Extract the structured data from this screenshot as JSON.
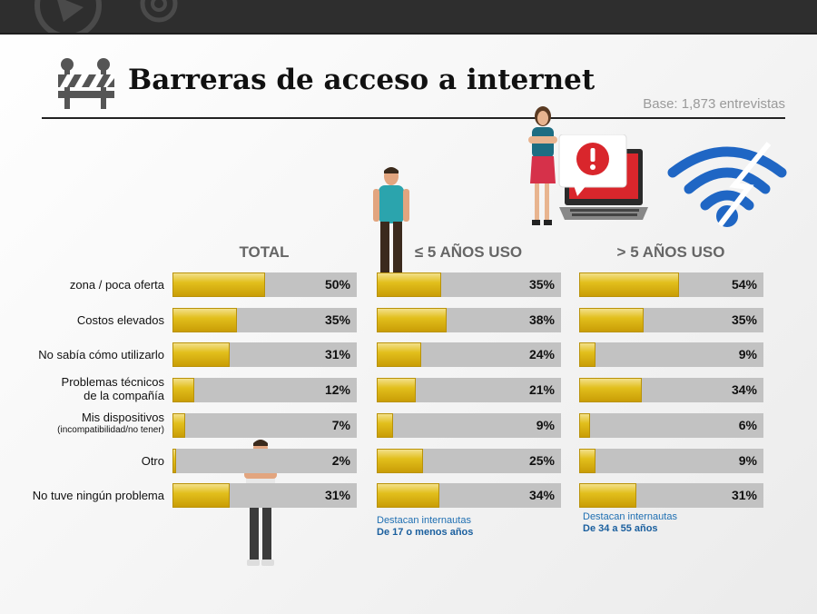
{
  "header": {
    "title": "Barreras de acceso a internet",
    "base_note": "Base: 1,873 entrevistas"
  },
  "icons": [
    "barrier-icon",
    "person-illustration",
    "laptop-alert-icon",
    "wifi-icon"
  ],
  "colors": {
    "bar_fill": "#e2bf1c",
    "bar_track": "#c2c2c2",
    "note_text": "#1f6fb2"
  },
  "chart_data": {
    "type": "bar",
    "orientation": "horizontal",
    "categories": [
      "zona / poca oferta",
      "Costos elevados",
      "No sabía cómo utilizarlo",
      "Problemas técnicos de la compañía",
      "Mis dispositivos (incompatibilidad/no tener)",
      "Otro",
      "No tuve ningún problema"
    ],
    "category_lines": [
      [
        "zona / poca oferta"
      ],
      [
        "Costos elevados"
      ],
      [
        "No sabía cómo utilizarlo"
      ],
      [
        "Problemas técnicos",
        "de la compañía"
      ],
      [
        "Mis dispositivos",
        "(incompatibilidad/no tener)"
      ],
      [
        "Otro"
      ],
      [
        "No tuve ningún problema"
      ]
    ],
    "series": [
      {
        "name": "TOTAL",
        "values": [
          50,
          35,
          31,
          12,
          7,
          2,
          31
        ],
        "labels": [
          "50%",
          "35%",
          "31%",
          "12%",
          "7%",
          "2%",
          "31%"
        ]
      },
      {
        "name": "≤ 5 AÑOS USO",
        "values": [
          35,
          38,
          24,
          21,
          9,
          25,
          34
        ],
        "labels": [
          "35%",
          "38%",
          "24%",
          "21%",
          "9%",
          "25%",
          "34%"
        ]
      },
      {
        "name": "> 5 AÑOS USO",
        "values": [
          54,
          35,
          9,
          34,
          6,
          9,
          31
        ],
        "labels": [
          "54%",
          "35%",
          "9%",
          "34%",
          "6%",
          "9%",
          "31%"
        ]
      }
    ],
    "xlim": [
      0,
      100
    ],
    "unit": "%"
  },
  "notes": [
    {
      "line1": "Destacan internautas",
      "line2": "De  17 o menos años"
    },
    {
      "line1": "Destacan internautas",
      "line2": "De  34 a 55 años"
    }
  ]
}
